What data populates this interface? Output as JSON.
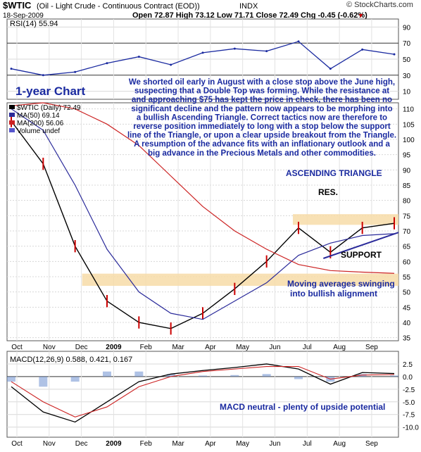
{
  "header": {
    "symbol": "$WTIC",
    "desc": "(Oil - Light Crude - Continuous Contract (EOD))",
    "exchange": "INDX",
    "date": "18-Sep-2009",
    "quote": "Open 72.87  High 73.12  Low 71.71  Close 72.49  Chg -0.45 (-0.62%)",
    "quote_arrow": "▼",
    "brand": "© StockCharts.com"
  },
  "rsi_panel": {
    "label": "RSI(14) 55.94",
    "ticks": [
      "90",
      "70",
      "50",
      "30",
      "10"
    ]
  },
  "price_panel": {
    "chart_label": "1-year Chart",
    "legend": [
      {
        "text": "$WTIC (Daily) 72.49",
        "color": "#000000"
      },
      {
        "text": "MA(50) 69.14",
        "color": "#2a2a9a"
      },
      {
        "text": "MA(200) 56.06",
        "color": "#cc2222"
      },
      {
        "text": "Volume undef",
        "color": "#5555cc"
      }
    ],
    "ticks": [
      "110",
      "105",
      "100",
      "95",
      "90",
      "85",
      "80",
      "75",
      "70",
      "65",
      "60",
      "55",
      "50",
      "45",
      "40",
      "35"
    ],
    "commentary": [
      "We shorted oil early in August with a close stop above the June high,",
      "suspecting that a Double Top was forming. While the resistance at",
      "and approaching $75 has kept the price in check, there has been no",
      "significant decline and the pattern now appears to be morphing into",
      "a bullish Ascending Triangle. Correct tactics now are therefore to",
      "reverse position immediately to long with a stop below the support",
      "line of the Triangle, or upon a clear upside breakout from the Triangle.",
      "A resumption of the advance fits with an inflationary outlook and a",
      "big advance in the Precious Metals and other commodities."
    ],
    "annotations": {
      "triangle": "ASCENDING TRIANGLE",
      "resistance": "RES.",
      "support": "SUPPORT",
      "ma_note_1": "Moving averages swinging",
      "ma_note_2": "into bullish alignment"
    }
  },
  "macd_panel": {
    "label": "MACD(12,26,9) 0.588, 0.421, 0.167",
    "ticks": [
      "2.5",
      "0.0",
      "-2.5",
      "-5.0",
      "-7.5",
      "-10.0"
    ],
    "note": "MACD neutral - plenty of upside potential"
  },
  "x_axis": [
    "Oct",
    "Nov",
    "Dec",
    "2009",
    "Feb",
    "Mar",
    "Apr",
    "May",
    "Jun",
    "Jul",
    "Aug",
    "Sep"
  ],
  "chart_data": {
    "type": "line",
    "title": "$WTIC (Oil - Light Crude - Continuous Contract (EOD))",
    "x": [
      "Sep-2008",
      "Oct",
      "Nov",
      "Dec",
      "Jan-2009",
      "Feb",
      "Mar",
      "Apr",
      "May",
      "Jun",
      "Jul",
      "Aug",
      "Sep-2009"
    ],
    "series": [
      {
        "name": "$WTIC (Daily)",
        "values": [
          106,
          92,
          65,
          47,
          40,
          38,
          43,
          51,
          60,
          71,
          63,
          71,
          72.5
        ]
      },
      {
        "name": "MA(50)",
        "values": [
          110,
          103,
          85,
          64,
          50,
          43,
          41,
          47,
          53,
          62,
          66,
          68.5,
          69.1
        ]
      },
      {
        "name": "MA(200)",
        "values": [
          111,
          112,
          110,
          105,
          98,
          88,
          78,
          70,
          64,
          59,
          57,
          56.5,
          56.1
        ]
      }
    ],
    "rsi": [
      38,
      30,
      34,
      45,
      53,
      43,
      58,
      63,
      60,
      72,
      38,
      62,
      56
    ],
    "macd": [
      -2,
      -7,
      -9,
      -5,
      -1,
      0.5,
      1.2,
      1.8,
      2.5,
      1.5,
      -1.5,
      0.8,
      0.6
    ],
    "signal": [
      -1,
      -5,
      -8,
      -6,
      -2,
      0,
      1,
      1.5,
      2,
      2,
      -0.5,
      0.3,
      0.4
    ],
    "ylim": [
      35,
      112
    ],
    "resistance_band": [
      72,
      75.5
    ],
    "support_band": [
      52,
      56
    ]
  }
}
